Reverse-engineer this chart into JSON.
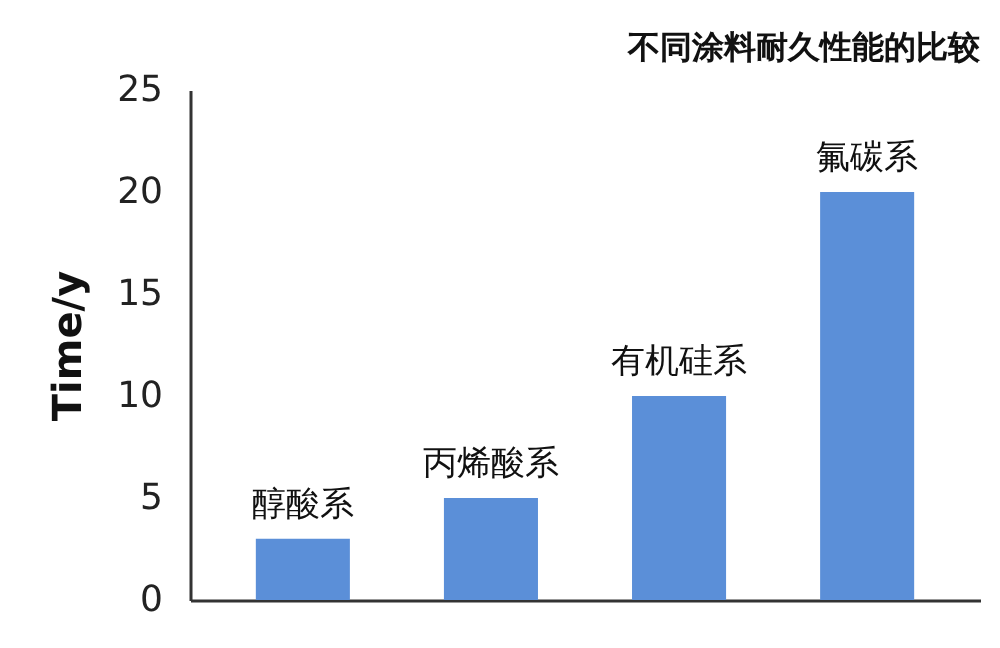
{
  "chart_data": {
    "type": "bar",
    "title": "不同涂料耐久性能的比较",
    "ylabel": "Time/y",
    "categories": [
      "醇酸系",
      "丙烯酸系",
      "有机硅系",
      "氟碳系"
    ],
    "values": [
      3,
      5,
      10,
      20
    ],
    "color": "#5b8fd8",
    "ylim": [
      0,
      25
    ],
    "yticks": [
      0,
      5,
      10,
      15,
      20,
      25
    ]
  }
}
